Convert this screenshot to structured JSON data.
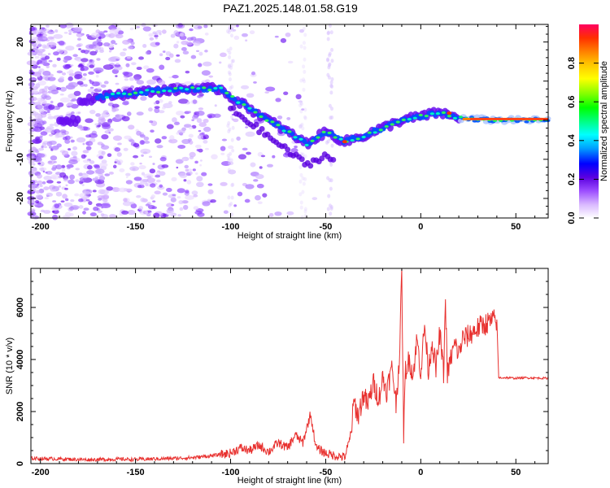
{
  "title": "PAZ1.2025.148.01.58.G19",
  "chart_data": [
    {
      "type": "heatmap",
      "xlabel": "Height of straight line (km)",
      "ylabel": "Frequency (Hz)",
      "xlim": [
        -205,
        67
      ],
      "ylim": [
        -25,
        24.5
      ],
      "xticks": [
        -200,
        -150,
        -100,
        -50,
        0,
        50
      ],
      "yticks": [
        -20,
        -10,
        0,
        10,
        20
      ],
      "colorbar": {
        "label": "Normalized spectral amplitude",
        "range": [
          0,
          1
        ],
        "ticks": [
          0.0,
          0.2,
          0.4,
          0.6,
          0.8
        ],
        "colors": [
          "#ffffff",
          "#d9b8ff",
          "#9c4dff",
          "#5a00e0",
          "#0000ff",
          "#00a0ff",
          "#00ffff",
          "#00ff80",
          "#00ff00",
          "#80ff00",
          "#ffff00",
          "#ffc000",
          "#ff8000",
          "#ff3000",
          "#ff0060"
        ]
      },
      "ridge": {
        "x": [
          -180,
          -160,
          -140,
          -120,
          -105,
          -100,
          -90,
          -80,
          -70,
          -60,
          -50,
          -40,
          -30,
          -20,
          -10,
          0,
          10,
          20,
          40,
          67
        ],
        "y": [
          5,
          6.5,
          7.5,
          8,
          8,
          6,
          3,
          0,
          -3,
          -6,
          -3,
          -5.5,
          -4,
          -2,
          0,
          1,
          2,
          0.5,
          0,
          0
        ]
      }
    },
    {
      "type": "line",
      "xlabel": "Height of straight line (km)",
      "ylabel": "SNR (10 * v/v)",
      "xlim": [
        -205,
        67
      ],
      "ylim": [
        0,
        7500
      ],
      "xticks": [
        -200,
        -150,
        -100,
        -50,
        0,
        50
      ],
      "yticks": [
        0,
        2000,
        4000,
        6000
      ],
      "color": "#e8312f",
      "series": [
        {
          "x": [
            -205,
            -190,
            -175,
            -160,
            -150,
            -140,
            -130,
            -120,
            -110,
            -100,
            -95,
            -90,
            -85,
            -80,
            -75,
            -70,
            -66,
            -62,
            -58,
            -55,
            -50,
            -45,
            -40,
            -37,
            -35,
            -33,
            -30,
            -28,
            -25,
            -22,
            -20,
            -18,
            -15,
            -13,
            -11,
            -10,
            -9,
            -8,
            -6,
            -4,
            -2,
            0,
            2,
            4,
            6,
            8,
            10,
            12,
            13,
            14,
            16,
            18,
            20,
            22,
            25,
            28,
            30,
            32,
            35,
            38,
            40,
            41,
            45,
            50,
            55,
            60,
            67
          ],
          "y": [
            200,
            180,
            150,
            170,
            160,
            180,
            200,
            230,
            300,
            400,
            600,
            500,
            700,
            450,
            800,
            600,
            1100,
            800,
            1900,
            600,
            400,
            300,
            250,
            1000,
            2400,
            1800,
            2700,
            2200,
            3100,
            2500,
            3300,
            2800,
            3700,
            2300,
            4400,
            7500,
            1200,
            3600,
            4000,
            3400,
            4800,
            3500,
            5300,
            3600,
            4700,
            3600,
            5000,
            3500,
            6300,
            3400,
            4100,
            4600,
            4200,
            4800,
            4900,
            5100,
            5200,
            5300,
            5400,
            5500,
            5500,
            3300,
            3300,
            3280,
            3300,
            3290,
            3280
          ]
        }
      ]
    }
  ]
}
